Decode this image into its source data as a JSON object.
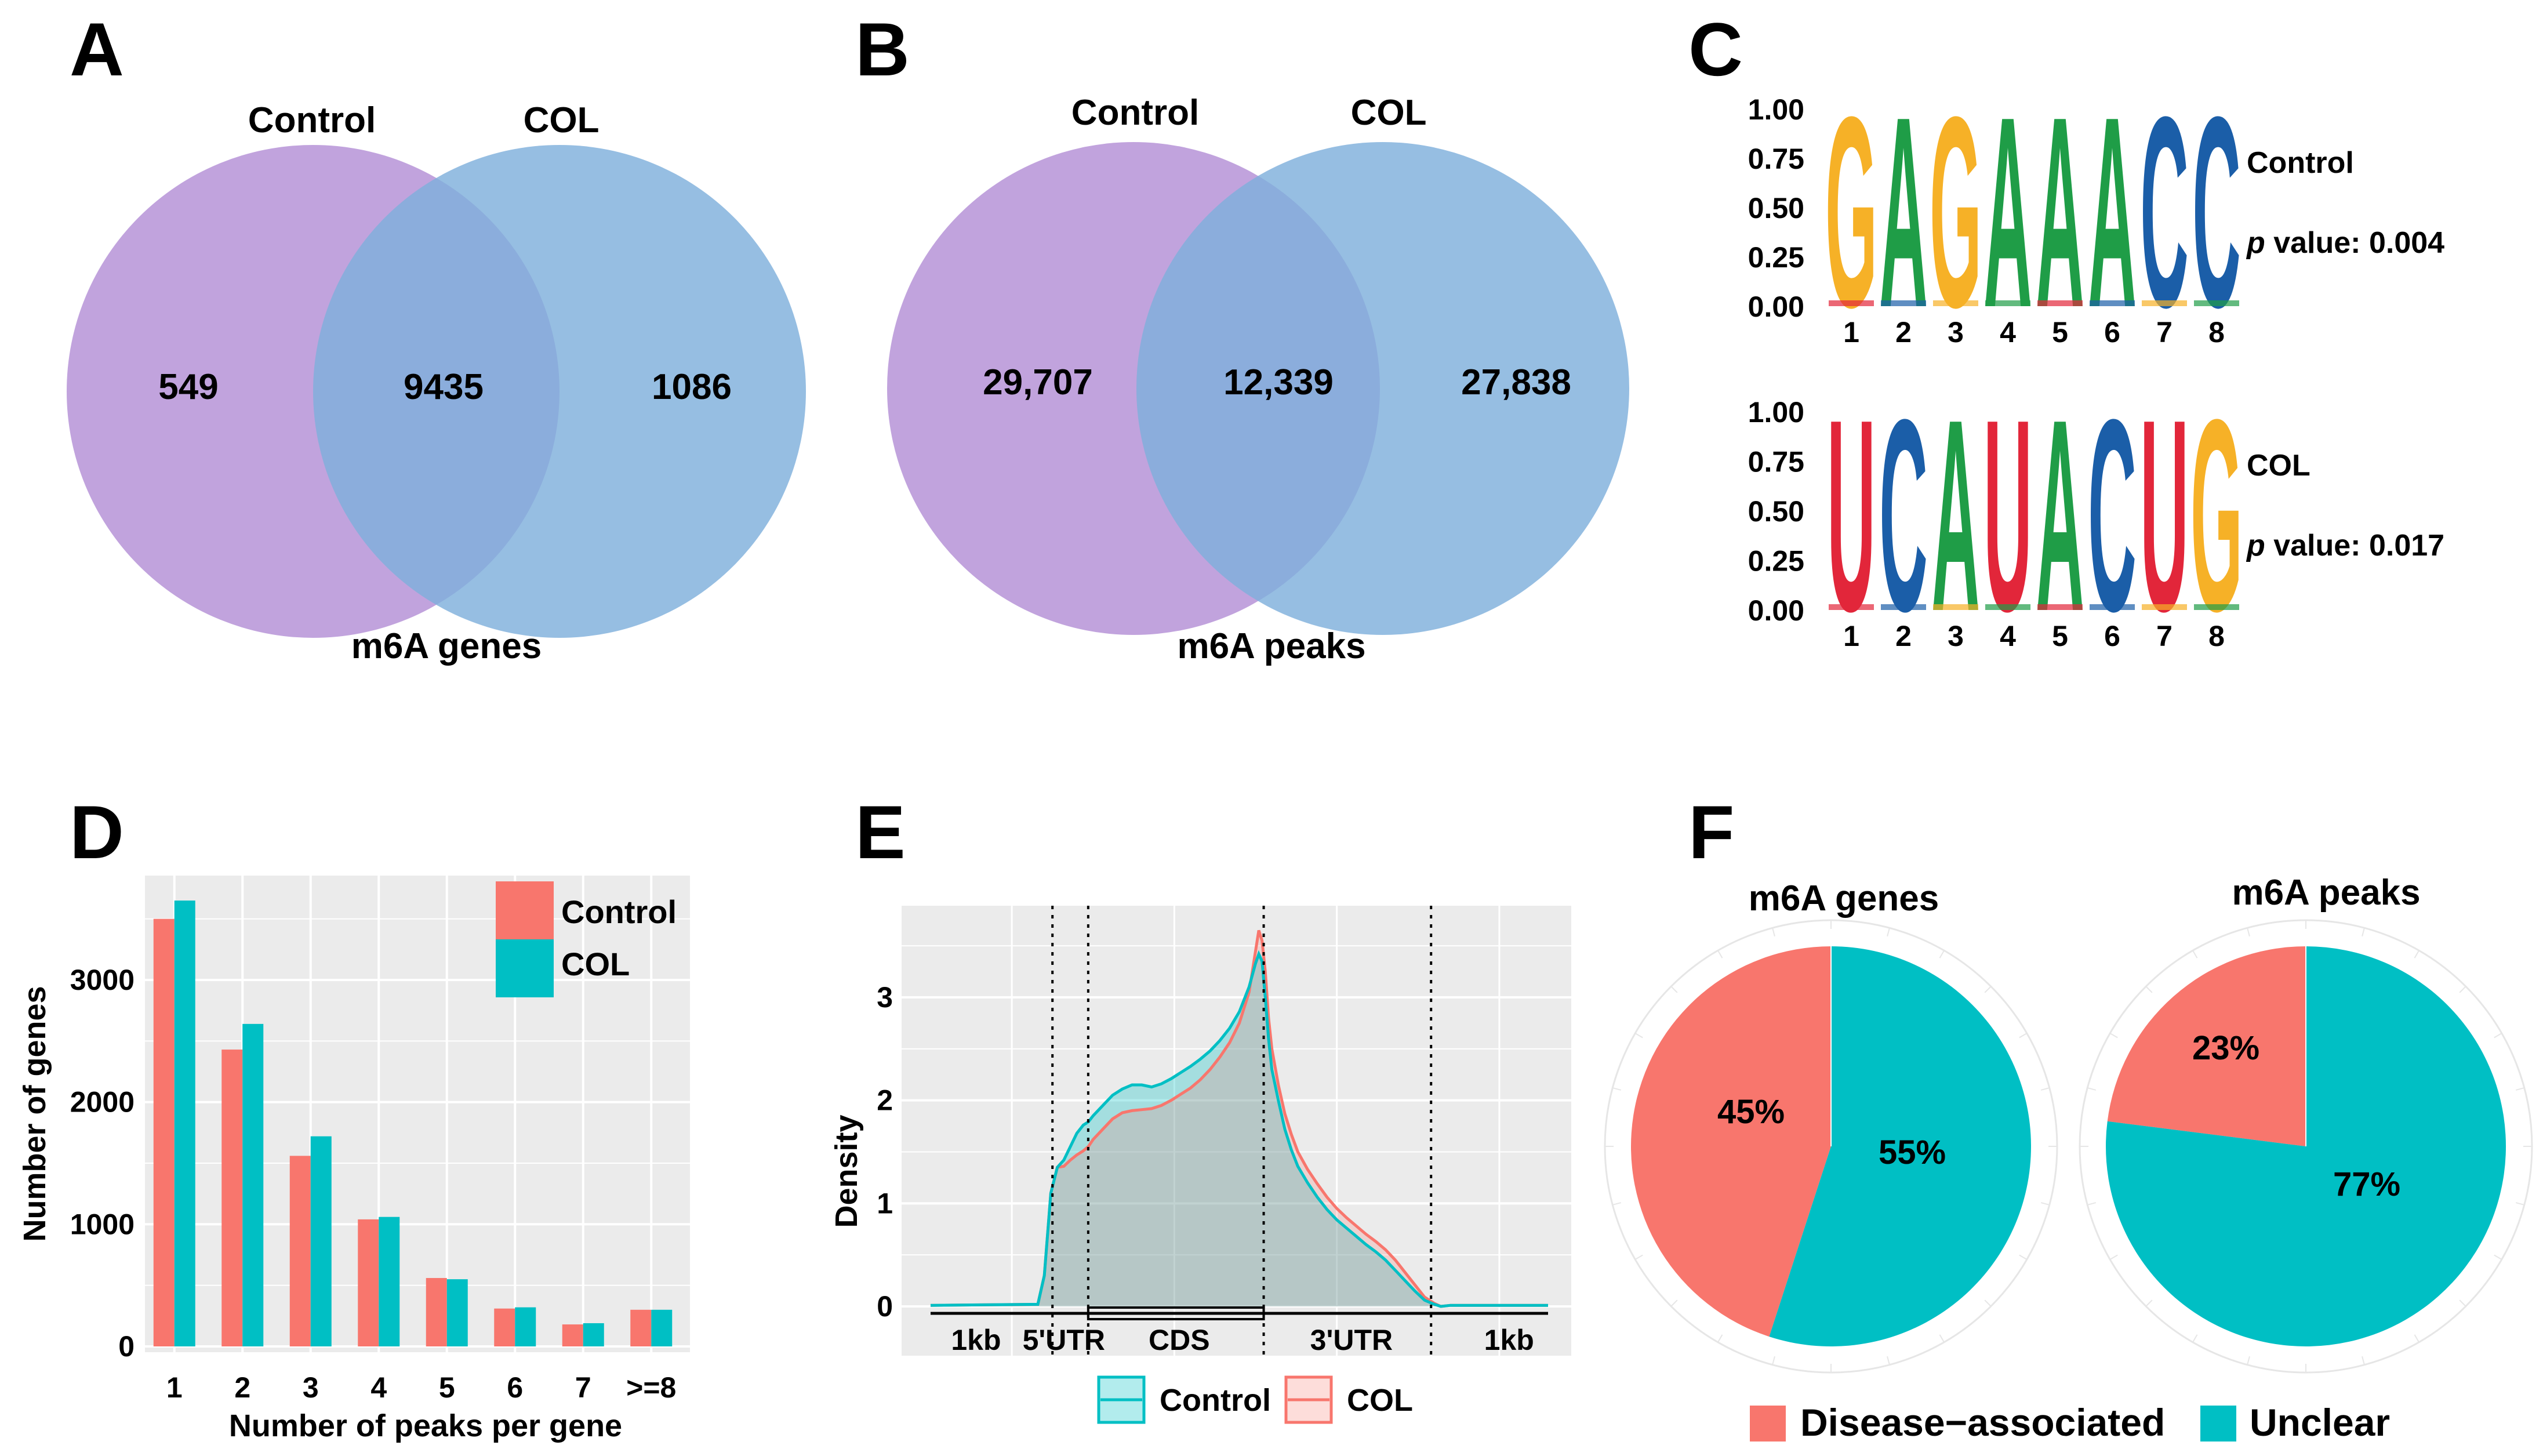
{
  "colors": {
    "purple": "#b38fd6",
    "blue": "#7fb0dc",
    "overlap": "#7f9cd6",
    "salmon": "#f8766d",
    "teal": "#00bfc4",
    "panel_bg": "#ebebeb",
    "grid": "#ffffff",
    "logo_G": "#f6b127",
    "logo_A": "#1f9d47",
    "logo_C": "#1b5ea8",
    "logo_U": "#e2263a"
  },
  "chart_data": [
    {
      "panel": "A",
      "type": "venn",
      "sets": [
        "Control",
        "COL"
      ],
      "values": {
        "only_first": "549",
        "overlap": "9435",
        "only_second": "1086"
      },
      "caption": "m6A genes"
    },
    {
      "panel": "B",
      "type": "venn",
      "sets": [
        "Control",
        "COL"
      ],
      "values": {
        "only_first": "29,707",
        "overlap": "12,339",
        "only_second": "27,838"
      },
      "caption": "m6A peaks"
    },
    {
      "panel": "C",
      "type": "sequence-logo",
      "motifs": [
        {
          "name": "Control",
          "sequence": "GAGAAACC",
          "p_label": "p",
          "p_rest": " value: 0.004",
          "positions": [
            "1",
            "2",
            "3",
            "4",
            "5",
            "6",
            "7",
            "8"
          ],
          "y_ticks": [
            "1.00",
            "0.75",
            "0.50",
            "0.25",
            "0.00"
          ],
          "ylim": [
            0,
            1
          ]
        },
        {
          "name": "COL",
          "sequence": "UCAUACUG",
          "p_label": "p",
          "p_rest": " value: 0.017",
          "positions": [
            "1",
            "2",
            "3",
            "4",
            "5",
            "6",
            "7",
            "8"
          ],
          "y_ticks": [
            "1.00",
            "0.75",
            "0.50",
            "0.25",
            "0.00"
          ],
          "ylim": [
            0,
            1
          ]
        }
      ]
    },
    {
      "panel": "D",
      "type": "bar",
      "categories": [
        "1",
        "2",
        "3",
        "4",
        "5",
        "6",
        "7",
        ">=8"
      ],
      "series": [
        {
          "name": "Control",
          "values": [
            3500,
            2430,
            1560,
            1040,
            560,
            310,
            180,
            300
          ]
        },
        {
          "name": "COL",
          "values": [
            3650,
            2640,
            1720,
            1060,
            550,
            320,
            190,
            300
          ]
        }
      ],
      "xlabel": "Number of peaks per gene",
      "ylabel": "Number of genes",
      "y_ticks": [
        0,
        1000,
        2000,
        3000
      ],
      "ylim": [
        0,
        3800
      ],
      "legend": "top-right"
    },
    {
      "panel": "E",
      "type": "area",
      "xlabel": "",
      "ylabel": "Density",
      "y_ticks": [
        0,
        1,
        2,
        3
      ],
      "ylim": [
        -0.3,
        3.72
      ],
      "xlim": [
        0,
        380
      ],
      "boundaries": [
        75,
        97,
        205,
        308
      ],
      "regions": [
        {
          "label": "1kb",
          "x": 28
        },
        {
          "label": "5'UTR",
          "x": 82
        },
        {
          "label": "CDS",
          "x": 153
        },
        {
          "label": "3'UTR",
          "x": 259
        },
        {
          "label": "1kb",
          "x": 356
        }
      ],
      "series": [
        {
          "name": "Control",
          "x": [
            0,
            66,
            70,
            74,
            78,
            82,
            86,
            90,
            94,
            97,
            100,
            106,
            112,
            118,
            124,
            130,
            136,
            142,
            148,
            154,
            160,
            166,
            172,
            178,
            184,
            190,
            196,
            200,
            202,
            204,
            206,
            208,
            210,
            214,
            218,
            222,
            226,
            232,
            238,
            244,
            250,
            256,
            262,
            268,
            274,
            280,
            286,
            292,
            298,
            304,
            310,
            314,
            320,
            380
          ],
          "y": [
            0.01,
            0.02,
            0.3,
            1.1,
            1.35,
            1.42,
            1.55,
            1.68,
            1.76,
            1.79,
            1.85,
            1.95,
            2.05,
            2.11,
            2.15,
            2.15,
            2.13,
            2.16,
            2.21,
            2.27,
            2.33,
            2.4,
            2.48,
            2.58,
            2.7,
            2.86,
            3.1,
            3.33,
            3.42,
            3.35,
            3.0,
            2.6,
            2.3,
            2.0,
            1.72,
            1.52,
            1.36,
            1.2,
            1.06,
            0.94,
            0.84,
            0.76,
            0.68,
            0.6,
            0.53,
            0.45,
            0.35,
            0.25,
            0.15,
            0.06,
            0.02,
            0.0,
            0.01,
            0.01
          ]
        },
        {
          "name": "COL",
          "x": [
            0,
            66,
            70,
            74,
            78,
            82,
            86,
            90,
            94,
            97,
            100,
            106,
            112,
            118,
            124,
            130,
            136,
            142,
            148,
            154,
            160,
            166,
            172,
            178,
            184,
            190,
            196,
            200,
            202,
            204,
            206,
            208,
            210,
            214,
            218,
            222,
            226,
            232,
            238,
            244,
            250,
            256,
            262,
            268,
            274,
            280,
            286,
            292,
            298,
            304,
            310,
            314,
            320,
            380
          ],
          "y": [
            0.01,
            0.02,
            0.3,
            1.1,
            1.35,
            1.36,
            1.42,
            1.47,
            1.51,
            1.55,
            1.62,
            1.72,
            1.82,
            1.88,
            1.9,
            1.91,
            1.92,
            1.95,
            2.0,
            2.06,
            2.12,
            2.2,
            2.3,
            2.42,
            2.56,
            2.75,
            3.05,
            3.45,
            3.65,
            3.55,
            3.25,
            2.8,
            2.5,
            2.15,
            1.87,
            1.67,
            1.5,
            1.33,
            1.19,
            1.06,
            0.95,
            0.86,
            0.78,
            0.7,
            0.63,
            0.55,
            0.45,
            0.33,
            0.21,
            0.09,
            0.03,
            0.0,
            0.01,
            0.01
          ]
        }
      ],
      "legend": "bottom"
    },
    {
      "panel": "F",
      "type": "pie",
      "charts": [
        {
          "title": "m6A genes",
          "slices": [
            {
              "label": "Disease−associated",
              "value": 45,
              "text": "45%"
            },
            {
              "label": "Unclear",
              "value": 55,
              "text": "55%"
            }
          ]
        },
        {
          "title": "m6A peaks",
          "slices": [
            {
              "label": "Disease−associated",
              "value": 23,
              "text": "23%"
            },
            {
              "label": "Unclear",
              "value": 77,
              "text": "77%"
            }
          ]
        }
      ],
      "legend": [
        "Disease−associated",
        "Unclear"
      ]
    }
  ],
  "panel_letters": [
    "A",
    "B",
    "C",
    "D",
    "E",
    "F"
  ]
}
